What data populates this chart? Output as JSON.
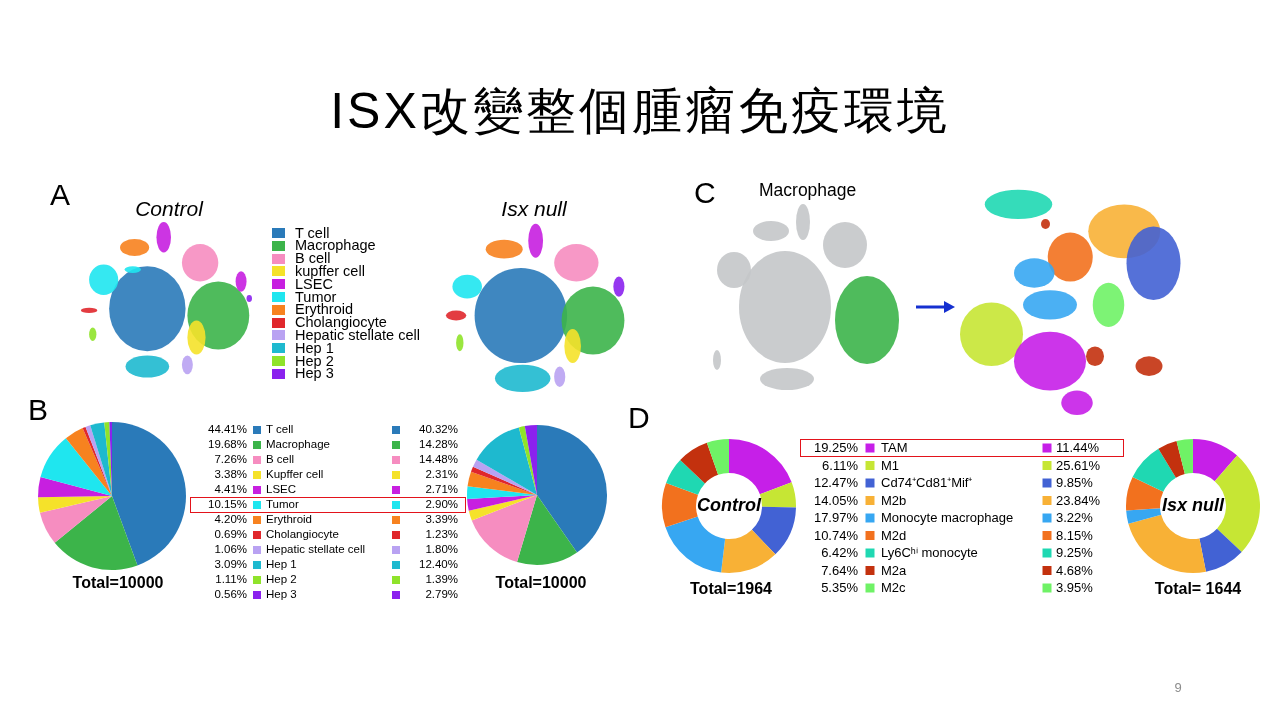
{
  "chart_data": [
    {
      "type": "other",
      "title": "ISX改變整個腫瘤免疫環境",
      "annotations": [
        "9"
      ]
    },
    {
      "type": "other",
      "categories": [
        "T cell",
        "Macrophage",
        "B cell",
        "kupffer cell",
        "LSEC",
        "Tumor",
        "Erythroid",
        "Cholangiocyte",
        "Hepatic stellate cell",
        "Hep 1",
        "Hep 2",
        "Hep 3"
      ],
      "colors": [
        "#2a7ab9",
        "#3cb44a",
        "#f68dc0",
        "#f5e22a",
        "#c71fe0",
        "#1fe6ef",
        "#f7821f",
        "#e0272c",
        "#b9a2f2",
        "#1eb9cf",
        "#8fe32a",
        "#8b22ee"
      ],
      "annotations": [
        "A",
        "Control",
        "Isx null"
      ]
    },
    {
      "type": "other",
      "annotations": [
        "C",
        "Macrophage"
      ]
    },
    {
      "type": "pie",
      "categories": [
        "T cell",
        "Macrophage",
        "B cell",
        "Kupffer cell",
        "LSEC",
        "Tumor",
        "Erythroid",
        "Cholangiocyte",
        "Hepatic stellate cell",
        "Hep 1",
        "Hep 2",
        "Hep 3"
      ],
      "colors": [
        "#2a7ab9",
        "#3cb44a",
        "#f68dc0",
        "#f5e22a",
        "#c71fe0",
        "#1fe6ef",
        "#f7821f",
        "#e0272c",
        "#b9a2f2",
        "#1eb9cf",
        "#8fe32a",
        "#8b22ee"
      ],
      "series": [
        {
          "values": [
            44.41,
            19.68,
            7.26,
            3.38,
            4.41,
            10.15,
            4.2,
            0.69,
            1.06,
            3.09,
            1.11,
            0.56
          ],
          "value_labels": [
            "44.41%",
            "19.68%",
            "7.26%",
            "3.38%",
            "4.41%",
            "10.15%",
            "4.20%",
            "0.69%",
            "1.06%",
            "3.09%",
            "1.11%",
            "0.56%"
          ]
        },
        {
          "values": [
            40.32,
            14.28,
            14.48,
            2.31,
            2.71,
            2.9,
            3.39,
            1.23,
            1.8,
            12.4,
            1.39,
            2.79
          ],
          "value_labels": [
            "40.32%",
            "14.28%",
            "14.48%",
            "2.31%",
            "2.71%",
            "2.90%",
            "3.39%",
            "1.23%",
            "1.80%",
            "12.40%",
            "1.39%",
            "2.79%"
          ]
        }
      ],
      "legend": "right",
      "annotations": [
        "B",
        "Total=10000",
        "Total=10000"
      ]
    },
    {
      "type": "donut",
      "categories": [
        "TAM",
        "M1",
        "Cd74⁺Cd81⁺Mif⁺",
        "M2b",
        "Monocyte macrophage",
        "M2d",
        "Ly6Cʰⁱ monocyte",
        "M2a",
        "M2c"
      ],
      "colors": [
        "#c61fe8",
        "#c6e634",
        "#4262d4",
        "#f8b136",
        "#37a7f2",
        "#f2711e",
        "#1fd8b2",
        "#c3310e",
        "#6ff266"
      ],
      "series": [
        {
          "name": "Control",
          "values": [
            19.25,
            6.11,
            12.47,
            14.05,
            17.97,
            10.74,
            6.42,
            7.64,
            5.35
          ],
          "value_labels": [
            "19.25%",
            "6.11%",
            "12.47%",
            "14.05%",
            "17.97%",
            "10.74%",
            "6.42%",
            "7.64%",
            "5.35%"
          ]
        },
        {
          "name": "Isx null",
          "values": [
            11.44,
            25.61,
            9.85,
            23.84,
            3.22,
            8.15,
            9.25,
            4.68,
            3.95
          ],
          "value_labels": [
            "11.44%",
            "25.61%",
            "9.85%",
            "23.84%",
            "3.22%",
            "8.15%",
            "9.25%",
            "4.68%",
            "3.95%"
          ]
        }
      ],
      "legend": "right",
      "annotations": [
        "D",
        "Total=1964",
        "Total= 1644"
      ]
    }
  ]
}
